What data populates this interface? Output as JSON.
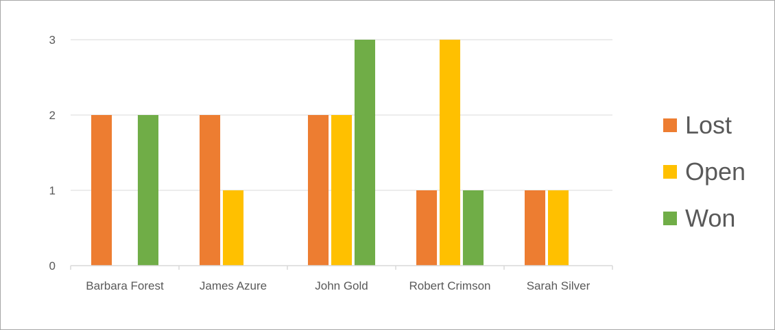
{
  "chart_data": {
    "type": "bar",
    "categories": [
      "Barbara Forest",
      "James Azure",
      "John Gold",
      "Robert Crimson",
      "Sarah Silver"
    ],
    "series": [
      {
        "name": "Lost",
        "color": "#ED7D31",
        "values": [
          2,
          2,
          2,
          1,
          1
        ]
      },
      {
        "name": "Open",
        "color": "#FFC000",
        "values": [
          0,
          1,
          2,
          3,
          1
        ]
      },
      {
        "name": "Won",
        "color": "#70AD47",
        "values": [
          2,
          0,
          3,
          1,
          0
        ]
      }
    ],
    "y_ticks": [
      "0",
      "1",
      "2",
      "3"
    ],
    "ylim": [
      0,
      3
    ],
    "grid": true,
    "legend_position": "right",
    "title": "",
    "xlabel": "",
    "ylabel": ""
  }
}
